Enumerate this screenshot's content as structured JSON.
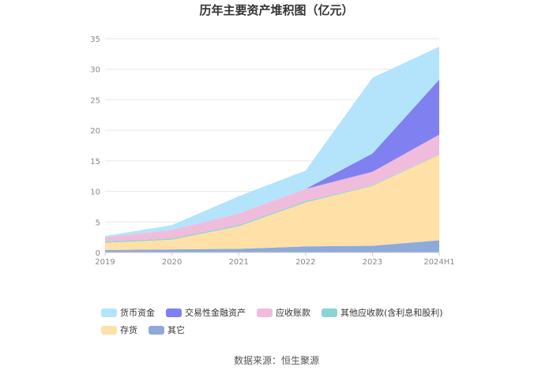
{
  "chart_data": {
    "type": "area",
    "stacked": true,
    "title": "历年主要资产堆积图（亿元）",
    "source": "数据来源：恒生聚源",
    "categories": [
      "2019",
      "2020",
      "2021",
      "2022",
      "2023",
      "2024H1"
    ],
    "ylim": [
      0,
      35
    ],
    "yticks": [
      "0",
      "5",
      "10",
      "15",
      "20",
      "25",
      "30",
      "35"
    ],
    "grid": true,
    "legend_position": "bottom",
    "series": [
      {
        "name": "其它",
        "color": "#8eaadb",
        "values": [
          0.4,
          0.5,
          0.6,
          1.0,
          1.1,
          2.0
        ]
      },
      {
        "name": "存货",
        "color": "#ffe0a6",
        "values": [
          1.2,
          1.6,
          3.7,
          7.2,
          9.8,
          14.0
        ]
      },
      {
        "name": "其他应收款(含利息和股利)",
        "color": "#8ad4d6",
        "values": [
          0.2,
          0.2,
          0.2,
          0.2,
          0.1,
          0.1
        ]
      },
      {
        "name": "应收账款",
        "color": "#f0bcdc",
        "values": [
          0.7,
          1.4,
          1.9,
          2.0,
          2.2,
          3.2
        ]
      },
      {
        "name": "交易性金融资产",
        "color": "#8080f0",
        "values": [
          0,
          0,
          0,
          0,
          3.0,
          9.0
        ]
      },
      {
        "name": "货币资金",
        "color": "#b3e4fb",
        "values": [
          0.2,
          0.8,
          2.8,
          3.0,
          12.4,
          5.4
        ]
      }
    ],
    "legend_order": [
      "货币资金",
      "交易性金融资产",
      "应收账款",
      "其他应收款(含利息和股利)",
      "存货",
      "其它"
    ]
  }
}
